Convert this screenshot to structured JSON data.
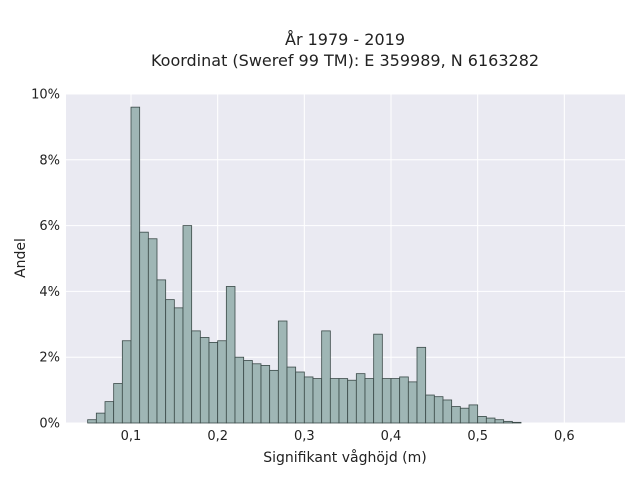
{
  "chart_data": {
    "type": "bar",
    "title_line1": "År 1979 - 2019",
    "title_line2": "Koordinat (Sweref 99 TM): E 359989, N 6163282",
    "xlabel": "Signifikant våghöjd (m)",
    "ylabel": "Andel",
    "xlim": [
      0.025,
      0.67
    ],
    "ylim": [
      0,
      10
    ],
    "grid": true,
    "bin_width": 0.01,
    "bin_start": 0.05,
    "values": [
      0.1,
      0.3,
      0.65,
      1.2,
      2.5,
      9.6,
      5.8,
      5.6,
      4.35,
      3.75,
      3.5,
      6.0,
      2.8,
      2.6,
      2.45,
      2.5,
      4.15,
      2.0,
      1.9,
      1.8,
      1.75,
      1.6,
      3.1,
      1.7,
      1.55,
      1.4,
      1.35,
      2.8,
      1.35,
      1.35,
      1.3,
      1.5,
      1.35,
      2.7,
      1.35,
      1.35,
      1.4,
      1.25,
      2.3,
      0.85,
      0.8,
      0.7,
      0.5,
      0.45,
      0.55,
      0.2,
      0.15,
      0.1,
      0.05,
      0.02
    ],
    "x_ticks": [
      {
        "value": 0.1,
        "label": "0,1"
      },
      {
        "value": 0.2,
        "label": "0,2"
      },
      {
        "value": 0.3,
        "label": "0,3"
      },
      {
        "value": 0.4,
        "label": "0,4"
      },
      {
        "value": 0.5,
        "label": "0,5"
      },
      {
        "value": 0.6,
        "label": "0,6"
      }
    ],
    "y_ticks": [
      {
        "value": 0,
        "label": "0%"
      },
      {
        "value": 2,
        "label": "2%"
      },
      {
        "value": 4,
        "label": "4%"
      },
      {
        "value": 6,
        "label": "6%"
      },
      {
        "value": 8,
        "label": "8%"
      },
      {
        "value": 10,
        "label": "10%"
      }
    ],
    "colors": {
      "bar_fill": "#9fb6b5",
      "bar_stroke": "#3a4a48",
      "plot_bg": "#eaeaf2",
      "grid": "#ffffff"
    }
  }
}
